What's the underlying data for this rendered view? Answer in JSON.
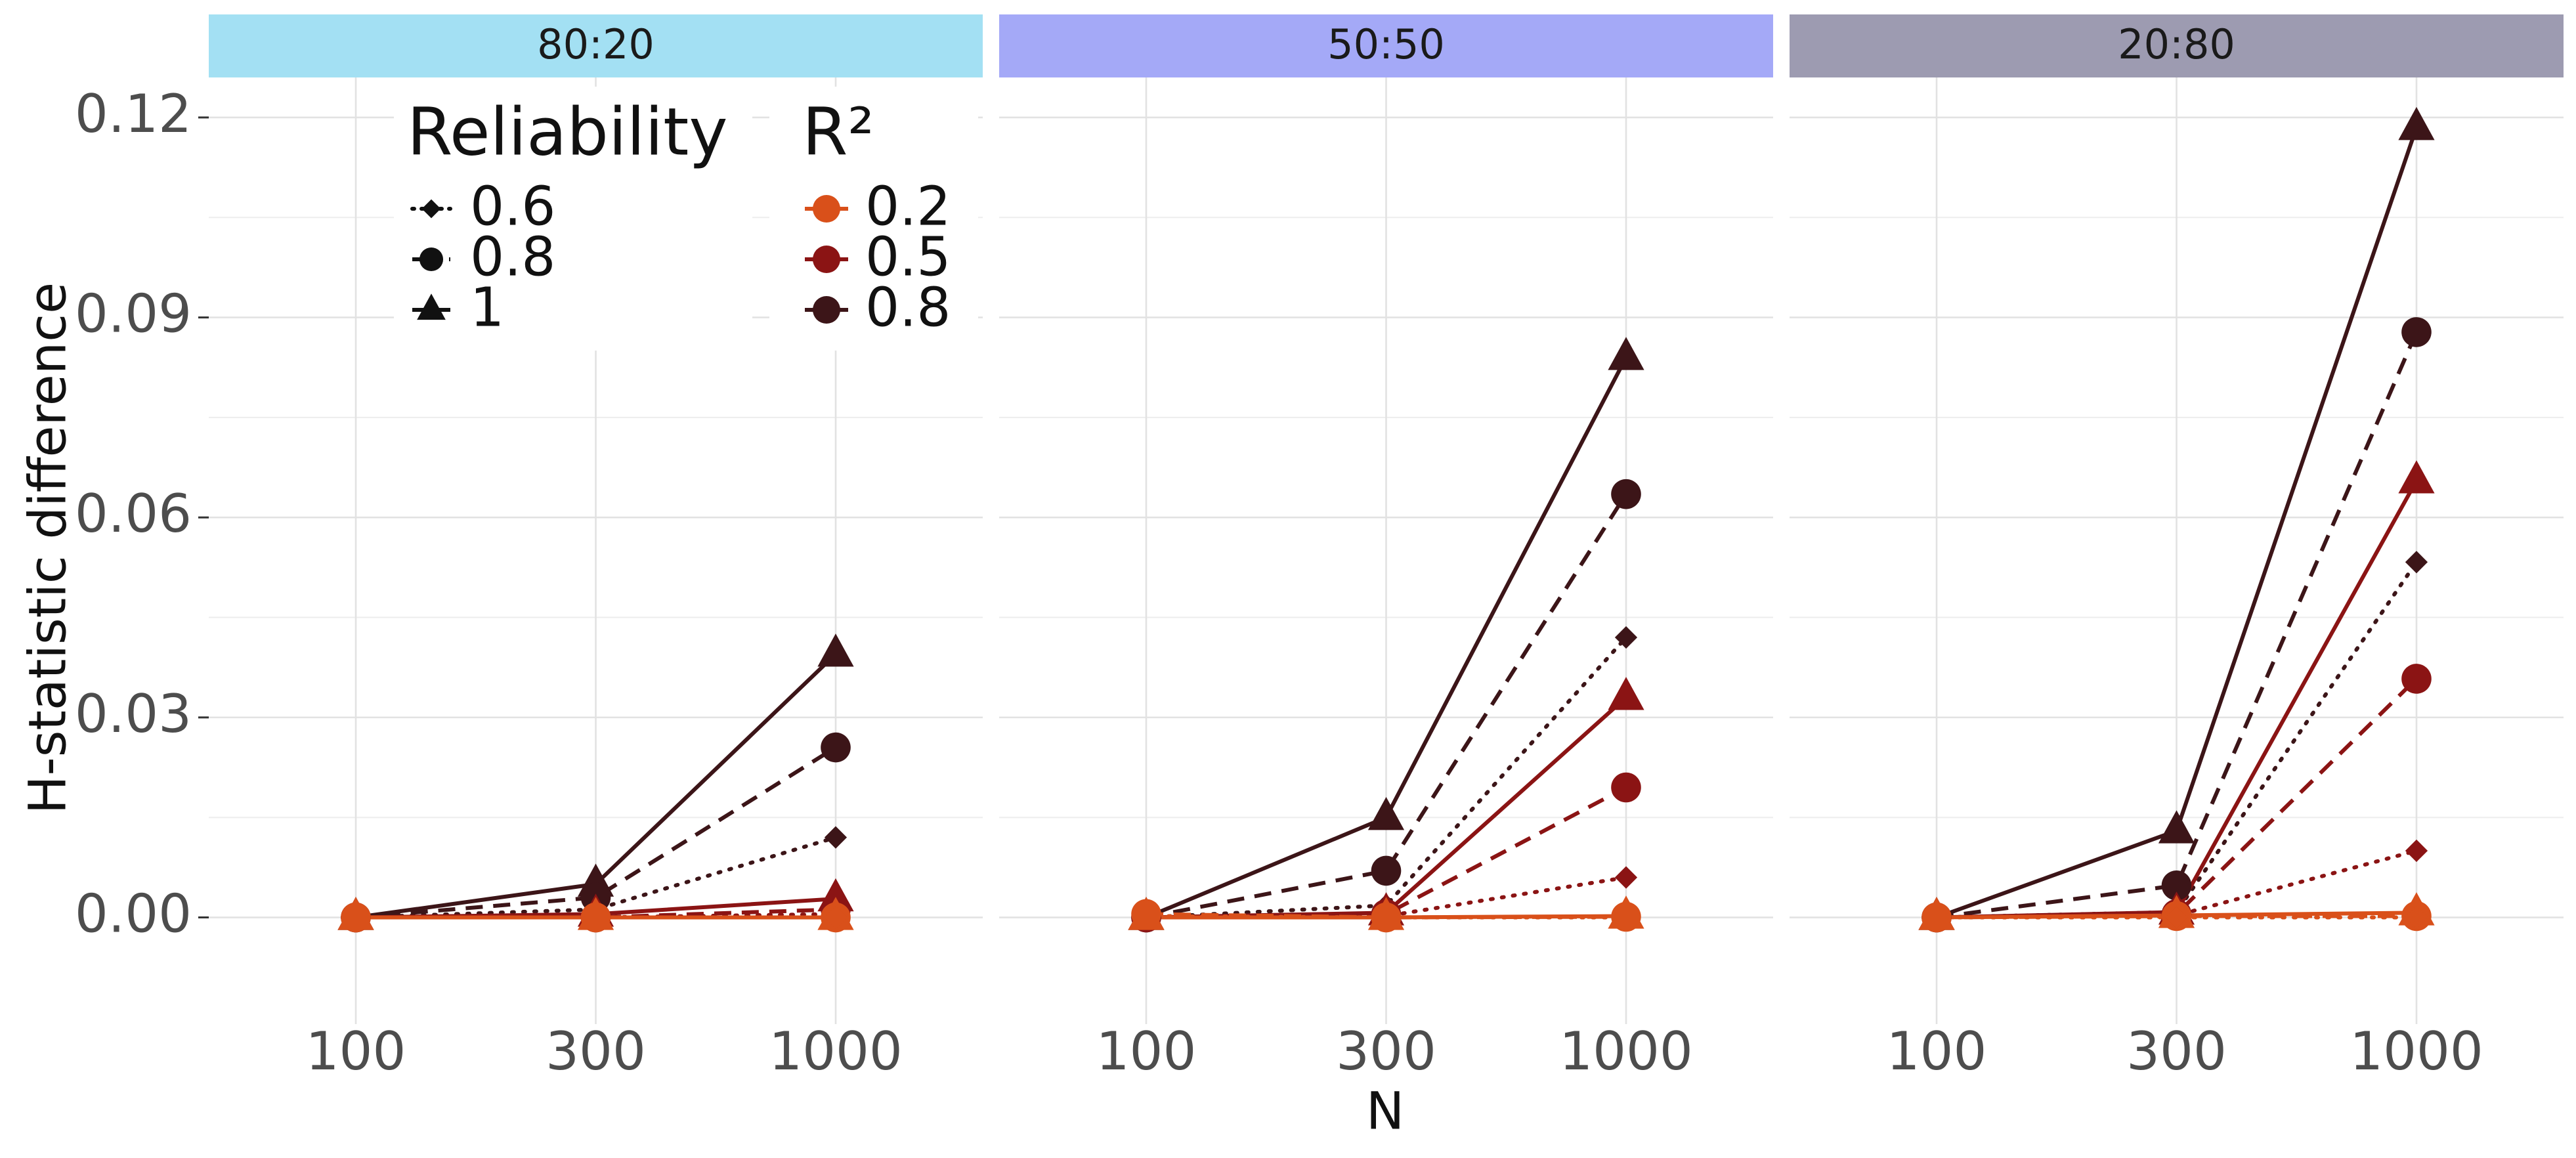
{
  "chart_data": {
    "type": "line",
    "ylabel": "H-statistic difference",
    "xlabel": "N",
    "x": [
      "100",
      "300",
      "1000"
    ],
    "ylim": [
      -0.016,
      0.126
    ],
    "yticks": [
      0,
      0.03,
      0.06,
      0.09,
      0.12
    ],
    "ytick_labels": [
      "0.00",
      "0.03",
      "0.06",
      "0.09",
      "0.12"
    ],
    "grid": true,
    "legend_position": "top-left, inside first panel",
    "legend": {
      "reliability_title": "Reliability",
      "reliability": [
        {
          "label": "0.6",
          "linetype": "dotted",
          "shape": "diamond"
        },
        {
          "label": "0.8",
          "linetype": "dashed",
          "shape": "circle"
        },
        {
          "label": "1",
          "linetype": "solid",
          "shape": "triangle"
        }
      ],
      "r2_title": "R²",
      "r2": [
        {
          "label": "0.2",
          "color": "#D9501A"
        },
        {
          "label": "0.5",
          "color": "#8B1414"
        },
        {
          "label": "0.8",
          "color": "#3C1518"
        }
      ]
    },
    "panels": [
      {
        "strip": "80:20",
        "strip_color": "#A3E0F3",
        "series": [
          {
            "reliability": "0.6",
            "r2": "0.2",
            "values": [
              0,
              0,
              0
            ]
          },
          {
            "reliability": "0.8",
            "r2": "0.2",
            "values": [
              0,
              0,
              0
            ]
          },
          {
            "reliability": "1",
            "r2": "0.2",
            "values": [
              0,
              0,
              0
            ]
          },
          {
            "reliability": "0.6",
            "r2": "0.5",
            "values": [
              0,
              0,
              0.0005
            ]
          },
          {
            "reliability": "0.8",
            "r2": "0.5",
            "values": [
              0,
              0,
              0.0012
            ]
          },
          {
            "reliability": "1",
            "r2": "0.5",
            "values": [
              0,
              0.0005,
              0.0028
            ]
          },
          {
            "reliability": "0.6",
            "r2": "0.8",
            "values": [
              0,
              0.0012,
              0.012
            ]
          },
          {
            "reliability": "0.8",
            "r2": "0.8",
            "values": [
              0,
              0.003,
              0.0255
            ]
          },
          {
            "reliability": "1",
            "r2": "0.8",
            "values": [
              0,
              0.005,
              0.0395
            ]
          }
        ]
      },
      {
        "strip": "50:50",
        "strip_color": "#A4A9F7",
        "series": [
          {
            "reliability": "0.6",
            "r2": "0.2",
            "values": [
              0.0002,
              0,
              0
            ]
          },
          {
            "reliability": "0.8",
            "r2": "0.2",
            "values": [
              0.0005,
              0,
              0.0001
            ]
          },
          {
            "reliability": "1",
            "r2": "0.2",
            "values": [
              0,
              0,
              0.0002
            ]
          },
          {
            "reliability": "0.6",
            "r2": "0.5",
            "values": [
              0,
              0.0002,
              0.006
            ]
          },
          {
            "reliability": "0.8",
            "r2": "0.5",
            "values": [
              0,
              0.0005,
              0.0195
            ]
          },
          {
            "reliability": "1",
            "r2": "0.5",
            "values": [
              0,
              0.0007,
              0.033
            ]
          },
          {
            "reliability": "0.6",
            "r2": "0.8",
            "values": [
              0,
              0.0018,
              0.042
            ]
          },
          {
            "reliability": "0.8",
            "r2": "0.8",
            "values": [
              0,
              0.007,
              0.0635
            ]
          },
          {
            "reliability": "1",
            "r2": "0.8",
            "values": [
              0,
              0.015,
              0.084
            ]
          }
        ]
      },
      {
        "strip": "20:80",
        "strip_color": "#9D9BB1",
        "series": [
          {
            "reliability": "0.6",
            "r2": "0.2",
            "values": [
              0,
              0,
              0
            ]
          },
          {
            "reliability": "0.8",
            "r2": "0.2",
            "values": [
              0,
              0.0002,
              0.0002
            ]
          },
          {
            "reliability": "1",
            "r2": "0.2",
            "values": [
              0,
              0.0003,
              0.0007
            ]
          },
          {
            "reliability": "0.6",
            "r2": "0.5",
            "values": [
              0,
              0.0003,
              0.01
            ]
          },
          {
            "reliability": "0.8",
            "r2": "0.5",
            "values": [
              0,
              0.0005,
              0.0358
            ]
          },
          {
            "reliability": "1",
            "r2": "0.5",
            "values": [
              0,
              0.0008,
              0.0655
            ]
          },
          {
            "reliability": "0.6",
            "r2": "0.8",
            "values": [
              0,
              0.0008,
              0.0533
            ]
          },
          {
            "reliability": "0.8",
            "r2": "0.8",
            "values": [
              0,
              0.0048,
              0.0878
            ]
          },
          {
            "reliability": "1",
            "r2": "0.8",
            "values": [
              0,
              0.013,
              0.1185
            ]
          }
        ]
      }
    ]
  }
}
